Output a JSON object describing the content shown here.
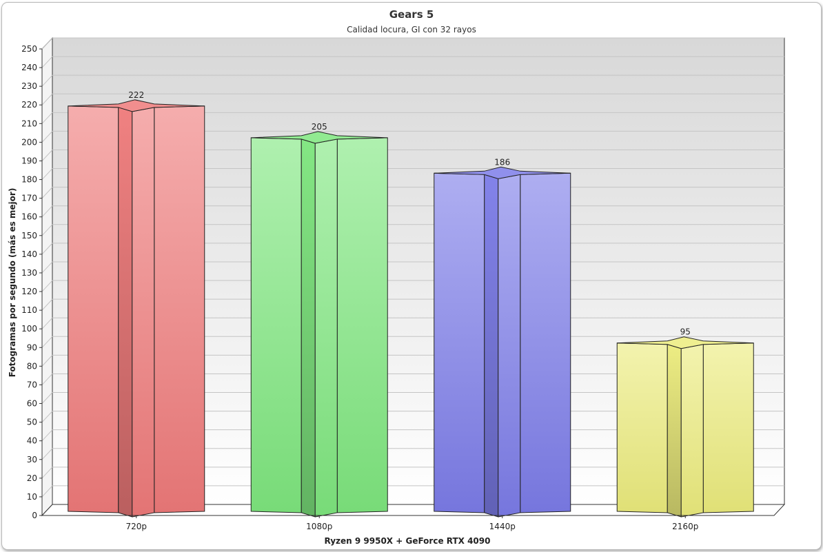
{
  "chart_data": {
    "type": "bar",
    "title": "Gears 5",
    "subtitle": "Calidad locura, GI con 32 rayos",
    "xlabel": "Ryzen 9 9950X + GeForce RTX 4090",
    "ylabel": "Fotogramas por segundo (más es mejor)",
    "categories": [
      "720p",
      "1080p",
      "1440p",
      "2160p"
    ],
    "values": [
      222,
      205,
      186,
      95
    ],
    "data_labels": [
      "222",
      "205",
      "186",
      "95"
    ],
    "colors": [
      "#ef7a7a",
      "#7ee67e",
      "#7c7ce9",
      "#ecec7c"
    ],
    "ylim": [
      0,
      250
    ],
    "ytick_step": 10,
    "grid": true,
    "legend": "none"
  }
}
